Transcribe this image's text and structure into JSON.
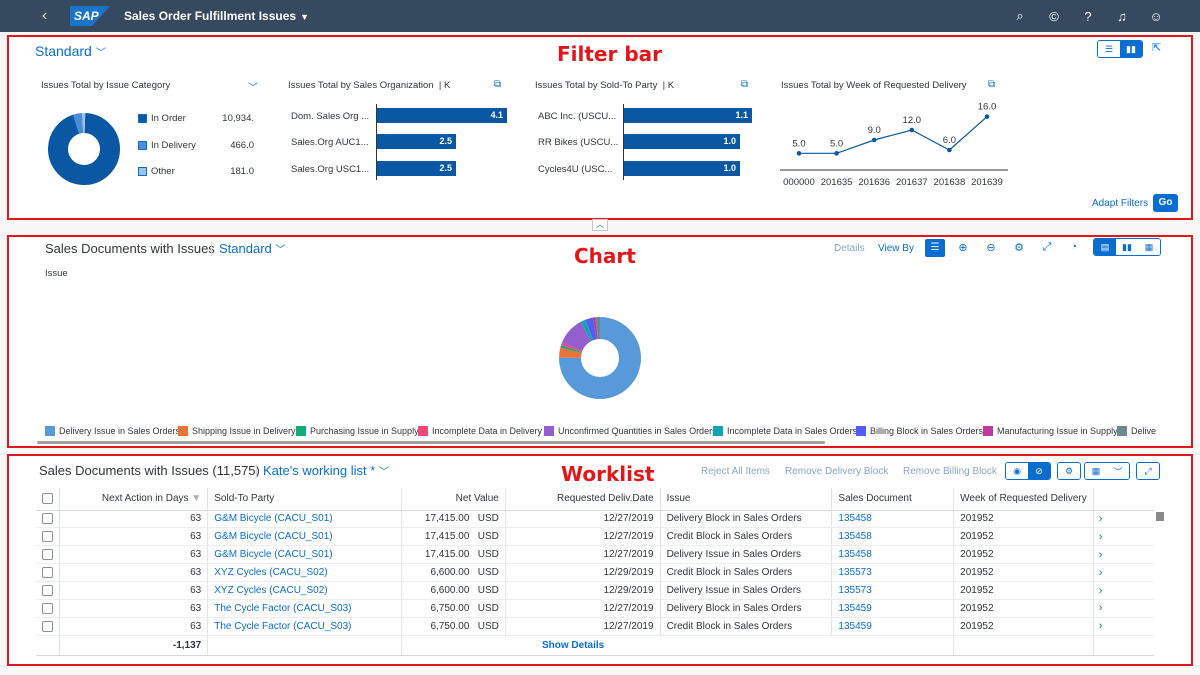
{
  "shell": {
    "back_icon": "back-arrow-icon",
    "logo": "SAP",
    "title": "Sales Order Fulfillment Issues",
    "icons": [
      "search-icon",
      "copilot-icon",
      "help-icon",
      "notifications-icon",
      "user-icon"
    ]
  },
  "annotations": {
    "filter_bar": "Filter bar",
    "chart": "Chart",
    "worklist": "Worklist"
  },
  "filter_bar": {
    "variant": "Standard",
    "adapt_filters": "Adapt Filters",
    "go": "Go",
    "cards": [
      {
        "title": "Issues Total by Issue Category",
        "legend": [
          {
            "label": "In Order",
            "value": "10,934.",
            "color": "#0a57a4"
          },
          {
            "label": "In Delivery",
            "value": "466.0",
            "color": "#4b8ed6"
          },
          {
            "label": "Other",
            "value": "181.0",
            "color": "#9ec3ea"
          }
        ]
      },
      {
        "title": "Issues Total by Sales Organization",
        "unit": "| K",
        "bars": [
          {
            "label": "Dom. Sales Org ...",
            "value": 4.1,
            "text": "4.1"
          },
          {
            "label": "Sales.Org AUC1...",
            "value": 2.5,
            "text": "2.5"
          },
          {
            "label": "Sales.Org USC1...",
            "value": 2.5,
            "text": "2.5"
          }
        ]
      },
      {
        "title": "Issues Total by Sold-To Party",
        "unit": "| K",
        "bars": [
          {
            "label": "ABC Inc. (USCU...",
            "value": 1.1,
            "text": "1.1"
          },
          {
            "label": "RR Bikes (USCU...",
            "value": 1.0,
            "text": "1.0"
          },
          {
            "label": "Cycles4U (USC...",
            "value": 1.0,
            "text": "1.0"
          }
        ]
      },
      {
        "title": "Issues Total by Week of Requested Delivery"
      }
    ]
  },
  "chart_data": [
    {
      "type": "pie",
      "title": "Issues Total by Issue Category",
      "categories": [
        "In Order",
        "In Delivery",
        "Other"
      ],
      "values": [
        10934,
        466,
        181
      ]
    },
    {
      "type": "bar",
      "title": "Issues Total by Sales Organization",
      "categories": [
        "Dom. Sales Org ...",
        "Sales.Org AUC1...",
        "Sales.Org USC1..."
      ],
      "values": [
        4.1,
        2.5,
        2.5
      ],
      "unit": "K"
    },
    {
      "type": "bar",
      "title": "Issues Total by Sold-To Party",
      "categories": [
        "ABC Inc. (USCU...",
        "RR Bikes (USCU...",
        "Cycles4U (USC..."
      ],
      "values": [
        1.1,
        1.0,
        1.0
      ],
      "unit": "K"
    },
    {
      "type": "line",
      "title": "Issues Total by Week of Requested Delivery",
      "x": [
        "000000",
        "201635",
        "201636",
        "201637",
        "201638",
        "201639"
      ],
      "values": [
        5.0,
        5.0,
        9.0,
        12.0,
        6.0,
        16.0
      ],
      "labels": [
        "5.0",
        "5.0",
        "9.0",
        "12.0",
        "6.0",
        "16.0"
      ]
    },
    {
      "type": "pie",
      "title": "Sales Documents with Issues",
      "ylabel": "Issue",
      "categories": [
        "Delivery Issue in Sales Orders",
        "Shipping Issue in Delivery",
        "Purchasing Issue in Supply",
        "Incomplete Data in Delivery",
        "Unconfirmed Quantities in Sales Orders",
        "Incomplete Data in Sales Orders",
        "Billing Block in Sales Orders",
        "Manufacturing Issue in Supply",
        "Delive"
      ],
      "values": [
        75,
        4,
        1,
        1,
        11,
        2,
        3,
        1,
        2
      ],
      "colors": [
        "#5899da",
        "#e8743b",
        "#19a979",
        "#ed4a7b",
        "#945ecf",
        "#13a4b4",
        "#525df4",
        "#bf399e",
        "#6c8893"
      ]
    }
  ],
  "chart_section": {
    "title": "Sales Documents with Issues",
    "variant": "Standard",
    "axis_label": "Issue",
    "details": "Details",
    "view_by": "View By"
  },
  "worklist": {
    "title": "Sales Documents with Issues (11,575)",
    "variant": "Kate's working list *",
    "actions": [
      "Reject All Items",
      "Remove Delivery Block",
      "Remove Billing Block"
    ],
    "columns": [
      "Next Action in Days",
      "Sold-To Party",
      "Net Value",
      "Requested Deliv.Date",
      "Issue",
      "Sales Document",
      "Week of Requested Delivery"
    ],
    "rows": [
      {
        "days": "63",
        "party": "G&M Bicycle (CACU_S01)",
        "value": "17,415.00",
        "currency": "USD",
        "date": "12/27/2019",
        "issue": "Delivery Block in Sales Orders",
        "doc": "135458",
        "week": "201952"
      },
      {
        "days": "63",
        "party": "G&M Bicycle (CACU_S01)",
        "value": "17,415.00",
        "currency": "USD",
        "date": "12/27/2019",
        "issue": "Credit Block in Sales Orders",
        "doc": "135458",
        "week": "201952"
      },
      {
        "days": "63",
        "party": "G&M Bicycle (CACU_S01)",
        "value": "17,415.00",
        "currency": "USD",
        "date": "12/27/2019",
        "issue": "Delivery Issue in Sales Orders",
        "doc": "135458",
        "week": "201952"
      },
      {
        "days": "63",
        "party": "XYZ Cycles (CACU_S02)",
        "value": "6,600.00",
        "currency": "USD",
        "date": "12/29/2019",
        "issue": "Credit Block in Sales Orders",
        "doc": "135573",
        "week": "201952"
      },
      {
        "days": "63",
        "party": "XYZ Cycles (CACU_S02)",
        "value": "6,600.00",
        "currency": "USD",
        "date": "12/29/2019",
        "issue": "Delivery Issue in Sales Orders",
        "doc": "135573",
        "week": "201952"
      },
      {
        "days": "63",
        "party": "The Cycle Factor (CACU_S03)",
        "value": "6,750.00",
        "currency": "USD",
        "date": "12/27/2019",
        "issue": "Delivery Block in Sales Orders",
        "doc": "135459",
        "week": "201952"
      },
      {
        "days": "63",
        "party": "The Cycle Factor (CACU_S03)",
        "value": "6,750.00",
        "currency": "USD",
        "date": "12/27/2019",
        "issue": "Credit Block in Sales Orders",
        "doc": "135459",
        "week": "201952"
      }
    ],
    "total": "-1,137",
    "show_details": "Show Details"
  }
}
